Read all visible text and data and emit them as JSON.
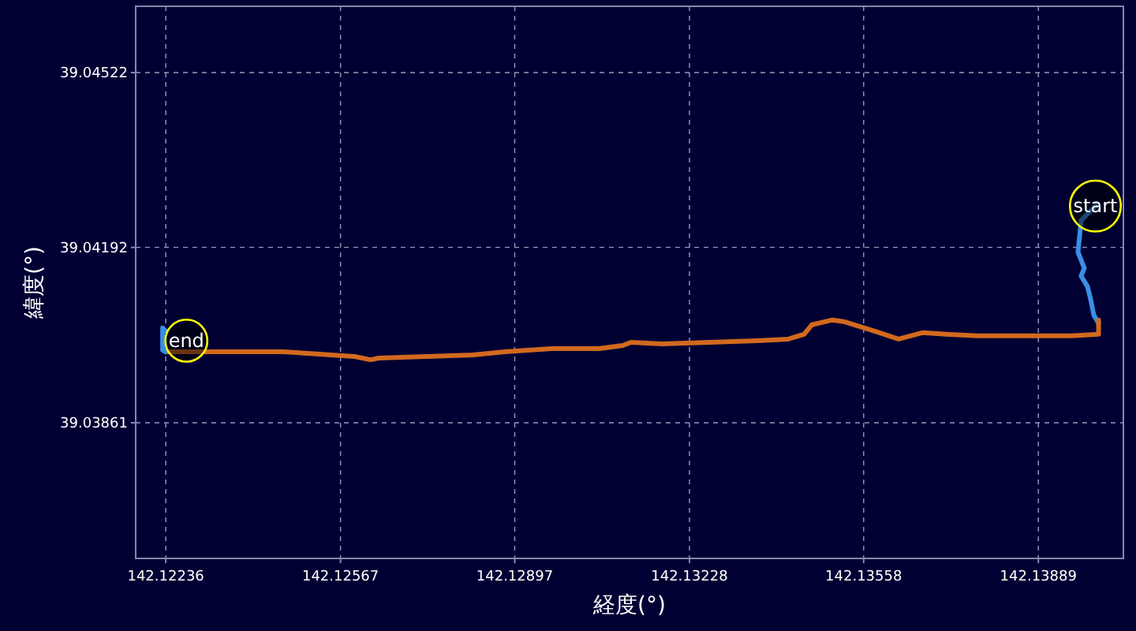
{
  "chart_data": {
    "type": "line",
    "xlabel": "経度(°)",
    "ylabel": "緯度(°)",
    "xlim": [
      142.12179,
      142.1405
    ],
    "ylim": [
      39.03605,
      39.04647
    ],
    "xticks": [
      142.12236,
      142.12567,
      142.12897,
      142.13228,
      142.13558,
      142.13889
    ],
    "yticks": [
      39.03861,
      39.04192,
      39.04522
    ],
    "grid": true,
    "line_style": "solid",
    "marker": "none",
    "series": [
      {
        "color": "#3a8ee6",
        "x": [
          142.13997,
          142.1397,
          142.13964,
          142.13976,
          142.1397,
          142.13982,
          142.13988,
          142.13994,
          142.14003
        ],
        "values": [
          39.0427,
          39.04243,
          39.04183,
          39.04153,
          39.04138,
          39.04118,
          39.04094,
          39.04064,
          39.04049
        ]
      },
      {
        "color": "#d2691e",
        "x": [
          142.14003,
          142.14003,
          142.13952,
          142.13863,
          142.13773,
          142.13714,
          142.13669,
          142.13624,
          142.13579,
          142.1352,
          142.13499,
          142.1346,
          142.13445,
          142.13415,
          142.13355,
          142.13266,
          142.13176,
          142.13117,
          142.13102,
          142.13057,
          142.12967,
          142.12878,
          142.12818,
          142.12729,
          142.12639,
          142.12624,
          142.12594,
          142.1246,
          142.12236
        ],
        "values": [
          39.04055,
          39.04028,
          39.04025,
          39.04025,
          39.04025,
          39.04028,
          39.04031,
          39.04019,
          39.04034,
          39.04052,
          39.04055,
          39.04046,
          39.04028,
          39.04019,
          39.04016,
          39.04013,
          39.0401,
          39.04013,
          39.04007,
          39.04001,
          39.04001,
          39.03995,
          39.03989,
          39.03986,
          39.03983,
          39.0398,
          39.03986,
          39.03995,
          39.03995
        ]
      },
      {
        "color": "#3a8ee6",
        "x": [
          142.12236,
          142.1223,
          142.1223,
          142.12236
        ],
        "values": [
          39.03995,
          39.03998,
          39.0404,
          39.04034
        ]
      }
    ],
    "annotations": [
      {
        "text": "start",
        "x": 142.13997,
        "y": 39.0427
      },
      {
        "text": "end",
        "x": 142.12275,
        "y": 39.04016
      }
    ]
  }
}
